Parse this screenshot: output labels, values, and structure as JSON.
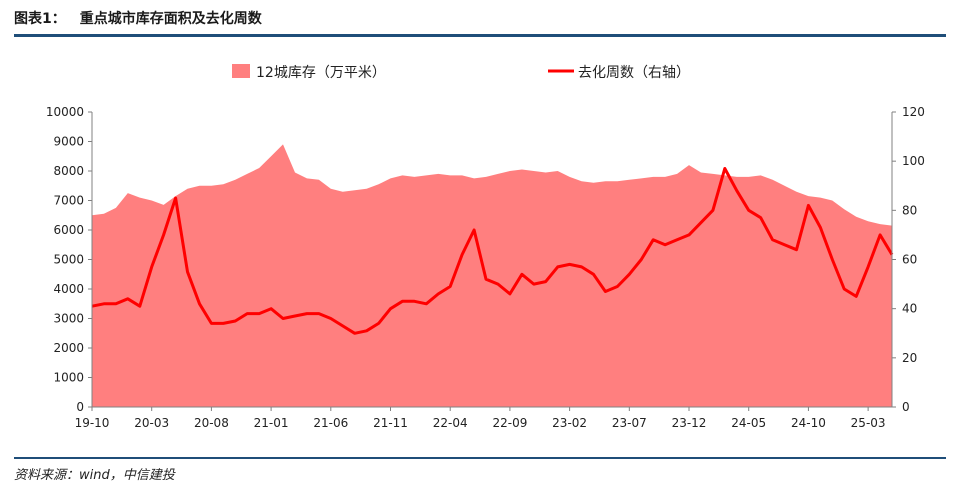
{
  "figure": {
    "number_label": "图表1：",
    "title": "重点城市库存面积及去化周数",
    "source": "资料来源：wind，中信建投"
  },
  "colors": {
    "area": "#ff7f7f",
    "line": "#ff0000",
    "rule": "#1f4e79"
  },
  "chart_data": {
    "type": "area",
    "title": "重点城市库存面积及去化周数",
    "legend_position": "top-center",
    "grid": false,
    "x_tick_labels": [
      "19-10",
      "20-03",
      "20-08",
      "21-01",
      "21-06",
      "21-11",
      "22-04",
      "22-09",
      "23-02",
      "23-07",
      "23-12",
      "24-05",
      "24-10",
      "25-03"
    ],
    "x_range": [
      "2019-10",
      "2025-05"
    ],
    "y_left": {
      "ylim": [
        0,
        10000
      ],
      "ticks": [
        0,
        1000,
        2000,
        3000,
        4000,
        5000,
        6000,
        7000,
        8000,
        9000,
        10000
      ]
    },
    "y_right": {
      "ylim": [
        0,
        120
      ],
      "ticks": [
        0,
        20,
        40,
        60,
        80,
        100,
        120
      ]
    },
    "series": [
      {
        "name": "12城库存（万平米）",
        "type": "area",
        "axis": "left",
        "points": [
          [
            "2019-10",
            6500
          ],
          [
            "2019-11",
            6550
          ],
          [
            "2019-12",
            6750
          ],
          [
            "2020-01",
            7250
          ],
          [
            "2020-02",
            7100
          ],
          [
            "2020-03",
            7000
          ],
          [
            "2020-04",
            6850
          ],
          [
            "2020-05",
            7150
          ],
          [
            "2020-06",
            7400
          ],
          [
            "2020-07",
            7500
          ],
          [
            "2020-08",
            7500
          ],
          [
            "2020-09",
            7550
          ],
          [
            "2020-10",
            7700
          ],
          [
            "2020-11",
            7900
          ],
          [
            "2020-12",
            8100
          ],
          [
            "2021-01",
            8500
          ],
          [
            "2021-02",
            8900
          ],
          [
            "2021-03",
            7950
          ],
          [
            "2021-04",
            7750
          ],
          [
            "2021-05",
            7700
          ],
          [
            "2021-06",
            7400
          ],
          [
            "2021-07",
            7300
          ],
          [
            "2021-08",
            7350
          ],
          [
            "2021-09",
            7400
          ],
          [
            "2021-10",
            7550
          ],
          [
            "2021-11",
            7750
          ],
          [
            "2021-12",
            7850
          ],
          [
            "2022-01",
            7800
          ],
          [
            "2022-02",
            7850
          ],
          [
            "2022-03",
            7900
          ],
          [
            "2022-04",
            7850
          ],
          [
            "2022-05",
            7850
          ],
          [
            "2022-06",
            7750
          ],
          [
            "2022-07",
            7800
          ],
          [
            "2022-08",
            7900
          ],
          [
            "2022-09",
            8000
          ],
          [
            "2022-10",
            8050
          ],
          [
            "2022-11",
            8000
          ],
          [
            "2022-12",
            7950
          ],
          [
            "2023-01",
            8000
          ],
          [
            "2023-02",
            7800
          ],
          [
            "2023-03",
            7650
          ],
          [
            "2023-04",
            7600
          ],
          [
            "2023-05",
            7650
          ],
          [
            "2023-06",
            7650
          ],
          [
            "2023-07",
            7700
          ],
          [
            "2023-08",
            7750
          ],
          [
            "2023-09",
            7800
          ],
          [
            "2023-10",
            7800
          ],
          [
            "2023-11",
            7900
          ],
          [
            "2023-12",
            8200
          ],
          [
            "2024-01",
            7950
          ],
          [
            "2024-02",
            7900
          ],
          [
            "2024-03",
            7850
          ],
          [
            "2024-04",
            7800
          ],
          [
            "2024-05",
            7800
          ],
          [
            "2024-06",
            7850
          ],
          [
            "2024-07",
            7700
          ],
          [
            "2024-08",
            7500
          ],
          [
            "2024-09",
            7300
          ],
          [
            "2024-10",
            7150
          ],
          [
            "2024-11",
            7100
          ],
          [
            "2024-12",
            7000
          ],
          [
            "2025-01",
            6700
          ],
          [
            "2025-02",
            6450
          ],
          [
            "2025-03",
            6300
          ],
          [
            "2025-04",
            6200
          ],
          [
            "2025-05",
            6150
          ]
        ]
      },
      {
        "name": "去化周数（右轴）",
        "type": "line",
        "axis": "right",
        "points": [
          [
            "2019-10",
            41
          ],
          [
            "2019-11",
            42
          ],
          [
            "2019-12",
            42
          ],
          [
            "2020-01",
            44
          ],
          [
            "2020-02",
            41
          ],
          [
            "2020-03",
            57
          ],
          [
            "2020-04",
            70
          ],
          [
            "2020-05",
            85
          ],
          [
            "2020-06",
            55
          ],
          [
            "2020-07",
            42
          ],
          [
            "2020-08",
            34
          ],
          [
            "2020-09",
            34
          ],
          [
            "2020-10",
            35
          ],
          [
            "2020-11",
            38
          ],
          [
            "2020-12",
            38
          ],
          [
            "2021-01",
            40
          ],
          [
            "2021-02",
            36
          ],
          [
            "2021-03",
            37
          ],
          [
            "2021-04",
            38
          ],
          [
            "2021-05",
            38
          ],
          [
            "2021-06",
            36
          ],
          [
            "2021-07",
            33
          ],
          [
            "2021-08",
            30
          ],
          [
            "2021-09",
            31
          ],
          [
            "2021-10",
            34
          ],
          [
            "2021-11",
            40
          ],
          [
            "2021-12",
            43
          ],
          [
            "2022-01",
            43
          ],
          [
            "2022-02",
            42
          ],
          [
            "2022-03",
            46
          ],
          [
            "2022-04",
            49
          ],
          [
            "2022-05",
            62
          ],
          [
            "2022-06",
            72
          ],
          [
            "2022-07",
            52
          ],
          [
            "2022-08",
            50
          ],
          [
            "2022-09",
            46
          ],
          [
            "2022-10",
            54
          ],
          [
            "2022-11",
            50
          ],
          [
            "2022-12",
            51
          ],
          [
            "2023-01",
            57
          ],
          [
            "2023-02",
            58
          ],
          [
            "2023-03",
            57
          ],
          [
            "2023-04",
            54
          ],
          [
            "2023-05",
            47
          ],
          [
            "2023-06",
            49
          ],
          [
            "2023-07",
            54
          ],
          [
            "2023-08",
            60
          ],
          [
            "2023-09",
            68
          ],
          [
            "2023-10",
            66
          ],
          [
            "2023-11",
            68
          ],
          [
            "2023-12",
            70
          ],
          [
            "2024-01",
            75
          ],
          [
            "2024-02",
            80
          ],
          [
            "2024-03",
            97
          ],
          [
            "2024-04",
            88
          ],
          [
            "2024-05",
            80
          ],
          [
            "2024-06",
            77
          ],
          [
            "2024-07",
            68
          ],
          [
            "2024-08",
            66
          ],
          [
            "2024-09",
            64
          ],
          [
            "2024-10",
            82
          ],
          [
            "2024-11",
            73
          ],
          [
            "2024-12",
            60
          ],
          [
            "2025-01",
            48
          ],
          [
            "2025-02",
            45
          ],
          [
            "2025-03",
            57
          ],
          [
            "2025-04",
            70
          ],
          [
            "2025-05",
            62
          ]
        ]
      }
    ]
  }
}
